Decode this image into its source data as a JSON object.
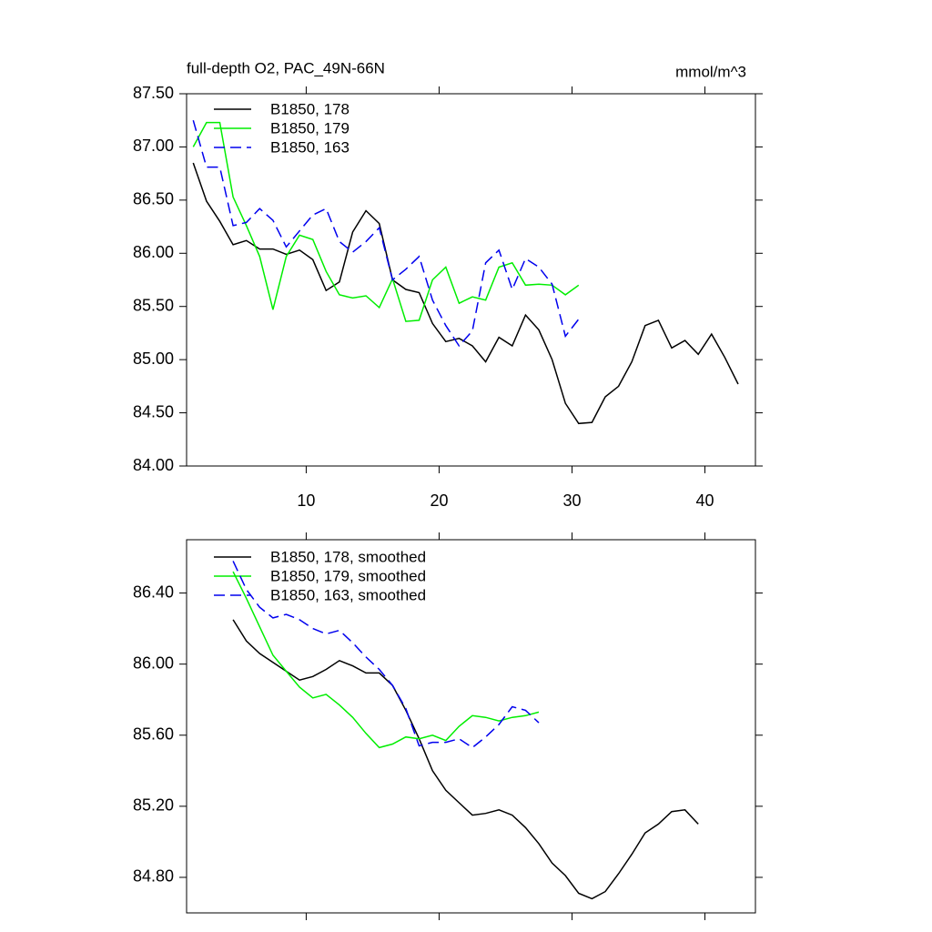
{
  "chart_data": [
    {
      "type": "line",
      "title": "full-depth O2, PAC_49N-66N",
      "units": "mmol/m^3",
      "x": [
        1.5,
        2.5,
        3.5,
        4.5,
        5.5,
        6.5,
        7.5,
        8.5,
        9.5,
        10.5,
        11.5,
        12.5,
        13.5,
        14.5,
        15.5,
        16.5,
        17.5,
        18.5,
        19.5,
        20.5,
        21.5,
        22.5,
        23.5,
        24.5,
        25.5,
        26.5,
        27.5,
        28.5,
        29.5,
        30.5,
        31.5,
        32.5,
        33.5,
        34.5,
        35.5,
        36.5,
        37.5,
        38.5,
        39.5,
        40.5,
        41.5,
        42.5
      ],
      "series": [
        {
          "name": "B1850, 178",
          "color": "#000000",
          "dashed": false,
          "values": [
            86.85,
            86.49,
            86.3,
            86.08,
            86.12,
            86.04,
            86.04,
            85.99,
            86.03,
            85.94,
            85.65,
            85.73,
            86.2,
            86.4,
            86.28,
            85.75,
            85.66,
            85.63,
            85.34,
            85.17,
            85.2,
            85.13,
            84.98,
            85.21,
            85.13,
            85.42,
            85.28,
            85.0,
            84.59,
            84.4,
            84.41,
            84.65,
            84.75,
            84.98,
            85.32,
            85.37,
            85.11,
            85.18,
            85.05,
            85.24,
            85.02,
            84.77
          ]
        },
        {
          "name": "B1850, 179",
          "color": "#00ee00",
          "dashed": false,
          "values": [
            87.0,
            87.23,
            87.23,
            86.53,
            86.26,
            85.97,
            85.47,
            85.97,
            86.17,
            86.13,
            85.83,
            85.61,
            85.58,
            85.6,
            85.49,
            85.76,
            85.36,
            85.37,
            85.75,
            85.87,
            85.53,
            85.59,
            85.56,
            85.87,
            85.91,
            85.7,
            85.71,
            85.7,
            85.61,
            85.7,
            null,
            null,
            null,
            null,
            null,
            null,
            null,
            null,
            null,
            null,
            null,
            null
          ]
        },
        {
          "name": "B1850, 163",
          "color": "#0000ee",
          "dashed": true,
          "values": [
            87.25,
            86.81,
            86.81,
            86.26,
            86.29,
            86.42,
            86.31,
            86.06,
            86.21,
            86.36,
            86.42,
            86.11,
            86.01,
            86.11,
            86.24,
            85.75,
            85.85,
            85.97,
            85.56,
            85.32,
            85.13,
            85.27,
            85.91,
            86.03,
            85.66,
            85.95,
            85.87,
            85.71,
            85.22,
            85.38,
            null,
            null,
            null,
            null,
            null,
            null,
            null,
            null,
            null,
            null,
            null,
            null
          ]
        }
      ],
      "xlim": [
        1,
        43.8
      ],
      "xticks": [
        10,
        20,
        30,
        40
      ],
      "ylim": [
        84,
        87.5
      ],
      "yticks": [
        {
          "value": 84,
          "label": "84.00"
        },
        {
          "value": 84.5,
          "label": "84.50"
        },
        {
          "value": 85,
          "label": "85.00"
        },
        {
          "value": 85.5,
          "label": "85.50"
        },
        {
          "value": 86,
          "label": "86.00"
        },
        {
          "value": 86.5,
          "label": "86.50"
        },
        {
          "value": 87,
          "label": "87.00"
        },
        {
          "value": 87.5,
          "label": "87.50"
        }
      ],
      "legend": "upper left"
    },
    {
      "type": "line",
      "x": [
        4.5,
        5.5,
        6.5,
        7.5,
        8.5,
        9.5,
        10.5,
        11.5,
        12.5,
        13.5,
        14.5,
        15.5,
        16.5,
        17.5,
        18.5,
        19.5,
        20.5,
        21.5,
        22.5,
        23.5,
        24.5,
        25.5,
        26.5,
        27.5,
        28.5,
        29.5,
        30.5,
        31.5,
        32.5,
        33.5,
        34.5,
        35.5,
        36.5,
        37.5,
        38.5,
        39.5
      ],
      "series": [
        {
          "name": "B1850, 178, smoothed",
          "color": "#000000",
          "dashed": false,
          "values": [
            86.25,
            86.13,
            86.06,
            86.01,
            85.96,
            85.91,
            85.93,
            85.97,
            86.02,
            85.99,
            85.95,
            85.95,
            85.88,
            85.74,
            85.58,
            85.4,
            85.29,
            85.22,
            85.15,
            85.16,
            85.18,
            85.15,
            85.08,
            84.99,
            84.88,
            84.81,
            84.71,
            84.68,
            84.72,
            84.82,
            84.93,
            85.05,
            85.1,
            85.17,
            85.18,
            85.1
          ]
        },
        {
          "name": "B1850, 179, smoothed",
          "color": "#00ee00",
          "dashed": false,
          "values": [
            86.52,
            86.37,
            86.21,
            86.05,
            85.96,
            85.87,
            85.81,
            85.83,
            85.77,
            85.7,
            85.61,
            85.53,
            85.55,
            85.59,
            85.58,
            85.6,
            85.57,
            85.65,
            85.71,
            85.7,
            85.68,
            85.7,
            85.71,
            85.73,
            null,
            null,
            null,
            null,
            null,
            null,
            null,
            null,
            null,
            null,
            null,
            null
          ]
        },
        {
          "name": "B1850, 163, smoothed",
          "color": "#0000ee",
          "dashed": true,
          "values": [
            86.58,
            86.42,
            86.32,
            86.26,
            86.28,
            86.25,
            86.2,
            86.17,
            86.19,
            86.12,
            86.04,
            85.97,
            85.88,
            85.75,
            85.54,
            85.56,
            85.56,
            85.58,
            85.53,
            85.59,
            85.66,
            85.76,
            85.74,
            85.67,
            null,
            null,
            null,
            null,
            null,
            null,
            null,
            null,
            null,
            null,
            null,
            null
          ]
        }
      ],
      "xlim": [
        1,
        43.8
      ],
      "xticks": [
        10,
        20,
        30,
        40
      ],
      "ylim": [
        84.6,
        86.7
      ],
      "yticks": [
        {
          "value": 84.8,
          "label": "84.80"
        },
        {
          "value": 85.2,
          "label": "85.20"
        },
        {
          "value": 85.6,
          "label": "85.60"
        },
        {
          "value": 86,
          "label": "86.00"
        },
        {
          "value": 86.4,
          "label": "86.40"
        }
      ],
      "legend": "upper left"
    }
  ]
}
